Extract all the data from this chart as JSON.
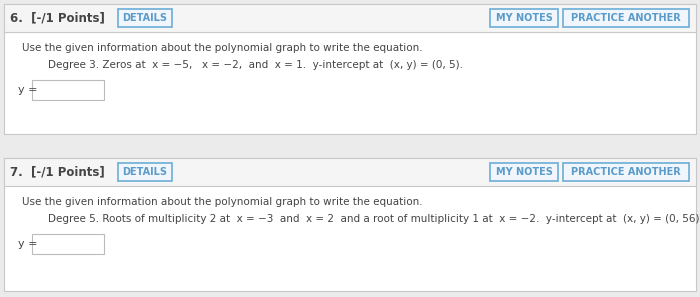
{
  "bg_color": "#ebebeb",
  "header_color": "#f5f5f5",
  "panel_color": "#ffffff",
  "border_color": "#c8c8c8",
  "button_border_color": "#6baed6",
  "button_text_color": "#5a9bc9",
  "text_color": "#444444",
  "q6_number_text": "6.  [-/1 Points]",
  "q6_details_btn": "DETAILS",
  "q6_mynotes_btn": "MY NOTES",
  "q6_practice_btn": "PRACTICE ANOTHER",
  "q6_instruction": "Use the given information about the polynomial graph to write the equation.",
  "q6_problem": "Degree 3. Zeros at  x = −5,   x = −2,  and  x = 1.  y-intercept at  (x, y) = (0, 5).",
  "q6_ylabel": "y =",
  "q7_number_text": "7.  [-/1 Points]",
  "q7_details_btn": "DETAILS",
  "q7_mynotes_btn": "MY NOTES",
  "q7_practice_btn": "PRACTICE ANOTHER",
  "q7_instruction": "Use the given information about the polynomial graph to write the equation.",
  "q7_problem": "Degree 5. Roots of multiplicity 2 at  x = −3  and  x = 2  and a root of multiplicity 1 at  x = −2.  y-intercept at  (x, y) = (0, 56).",
  "q7_ylabel": "y =",
  "input_box_border": "#bbbbbb",
  "input_box_color": "#ffffff",
  "fig_width": 7.0,
  "fig_height": 2.97,
  "dpi": 100
}
